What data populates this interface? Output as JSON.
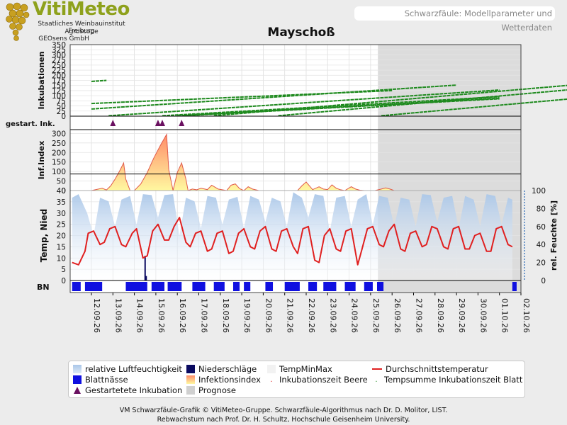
{
  "header": {
    "brand": "VitiMeteo",
    "org1": "Staatliches Weinbauinstitut Freiburg",
    "org2": "Agroscope",
    "org3": "GEOsens GmbH",
    "subtitle": "Schwarzfäule: Modellparameter und Wetterdaten",
    "title": "Mayschoß"
  },
  "colors": {
    "incubation": "#1e8a1e",
    "infection_fill_top": "#ff8c69",
    "infection_fill_bottom": "#fff8a0",
    "infection_line": "#e05a4a",
    "humidity": "#a9c6e8",
    "temperature": "#e02020",
    "precipitation": "#0a0a60",
    "leaf_wetness": "#1010e0",
    "started_marker": "#6a1060",
    "forecast": "#c0c0c0"
  },
  "chart_data": [
    {
      "type": "line",
      "panel": "incubation",
      "ylabel": "Inkubationen",
      "ylim": [
        0,
        350
      ],
      "yticks": [
        0,
        25,
        50,
        75,
        100,
        125,
        150,
        175,
        200,
        225,
        250,
        275,
        300,
        325,
        350
      ],
      "series": [
        {
          "x": [
            0.0,
            0.7
          ],
          "y": [
            170,
            175
          ]
        },
        {
          "x": [
            0.0,
            14.0
          ],
          "y": [
            62,
            125
          ]
        },
        {
          "x": [
            0.0,
            17.0
          ],
          "y": [
            35,
            152
          ]
        },
        {
          "x": [
            0.8,
            19.0
          ],
          "y": [
            2,
            128
          ]
        },
        {
          "x": [
            3.3,
            19.0
          ],
          "y": [
            2,
            95
          ]
        },
        {
          "x": [
            4.0,
            19.0
          ],
          "y": [
            2,
            88
          ]
        },
        {
          "x": [
            4.3,
            19.0
          ],
          "y": [
            2,
            85
          ]
        },
        {
          "x": [
            5.7,
            25.0
          ],
          "y": [
            2,
            176
          ]
        },
        {
          "x": [
            8.7,
            25.0
          ],
          "y": [
            2,
            155
          ]
        },
        {
          "x": [
            13.5,
            25.0
          ],
          "y": [
            2,
            110
          ]
        }
      ]
    },
    {
      "type": "scatter",
      "panel": "started_incubations",
      "ylabel": "gestart. Ink.",
      "x": [
        1.0,
        3.1,
        3.3,
        4.2
      ]
    },
    {
      "type": "area",
      "panel": "infection_index",
      "ylabel": "Inf.Index",
      "ylim": [
        0,
        320
      ],
      "yticks": [
        0,
        50,
        100,
        150,
        200,
        250,
        300
      ],
      "threshold": 87,
      "x": [
        0,
        0.5,
        0.7,
        0.9,
        1.1,
        1.3,
        1.5,
        1.6,
        1.8,
        2.0,
        2.3,
        2.6,
        2.9,
        3.2,
        3.5,
        3.6,
        3.8,
        4.0,
        4.2,
        4.4,
        4.5,
        4.7,
        4.9,
        5.1,
        5.4,
        5.6,
        5.9,
        6.3,
        6.5,
        6.7,
        6.9,
        7.1,
        7.3,
        7.5,
        7.8,
        8.0,
        8.3,
        8.6,
        8.9,
        9.2,
        9.6,
        9.8,
        10.0,
        10.3,
        10.6,
        10.8,
        11.0,
        11.2,
        11.4,
        11.6,
        11.8,
        12.1,
        12.3,
        12.5,
        12.7,
        12.9,
        13.2,
        13.5,
        13.7,
        13.9,
        14.1
      ],
      "y": [
        0,
        12,
        3,
        25,
        60,
        100,
        145,
        60,
        0,
        0,
        35,
        95,
        170,
        235,
        295,
        110,
        0,
        95,
        145,
        60,
        0,
        8,
        4,
        12,
        5,
        28,
        8,
        0,
        28,
        35,
        10,
        0,
        20,
        8,
        0,
        0,
        0,
        0,
        0,
        0,
        0,
        25,
        45,
        5,
        20,
        8,
        5,
        30,
        12,
        4,
        0,
        20,
        8,
        2,
        0,
        0,
        0,
        8,
        14,
        8,
        0
      ]
    },
    {
      "type": "line",
      "panel": "weather",
      "ylabel": "Temp, Nied",
      "y2label": "rel. Feuchte [%]",
      "ylim": [
        0,
        40
      ],
      "yticks": [
        0,
        5,
        10,
        15,
        20,
        25,
        30,
        35,
        40
      ],
      "y2lim": [
        0,
        100
      ],
      "y2ticks": [
        0,
        20,
        40,
        60,
        80,
        100
      ],
      "temperature": {
        "x": [
          0,
          0.3,
          0.6,
          0.75,
          1.0,
          1.3,
          1.5,
          1.75,
          2.0,
          2.3,
          2.5,
          2.8,
          3.0,
          3.3,
          3.5,
          3.75,
          4.0,
          4.3,
          4.5,
          4.75,
          5.0,
          5.3,
          5.5,
          5.75,
          6.0,
          6.3,
          6.5,
          6.75,
          7.0,
          7.3,
          7.5,
          7.75,
          8.0,
          8.3,
          8.5,
          8.75,
          9.0,
          9.3,
          9.5,
          9.75,
          10.0,
          10.3,
          10.5,
          10.75,
          11.0,
          11.3,
          11.5,
          11.75,
          12.0,
          12.3,
          12.5,
          12.75,
          13.0,
          13.3,
          13.5,
          13.75,
          14.0,
          14.3,
          14.5,
          14.75,
          15.0,
          15.3,
          15.5,
          15.75,
          16.0,
          16.3,
          16.5,
          16.75,
          17.0,
          17.3,
          17.5,
          17.75,
          18.0,
          18.3,
          18.5,
          18.75,
          19.0,
          19.3,
          19.5,
          19.75,
          20.0,
          20.3,
          20.5
        ],
        "y": [
          8,
          7,
          13,
          21,
          22,
          16,
          17,
          23,
          24,
          16,
          15,
          21,
          23,
          10,
          11,
          22,
          25,
          18,
          18,
          24,
          28,
          17,
          15,
          21,
          22,
          13,
          14,
          21,
          22,
          12,
          13,
          21,
          23,
          15,
          14,
          22,
          24,
          14,
          13,
          22,
          23,
          15,
          12,
          23,
          24,
          9,
          8,
          20,
          23,
          14,
          13,
          22,
          23,
          7,
          14,
          23,
          24,
          16,
          15,
          22,
          25,
          14,
          13,
          21,
          22,
          15,
          16,
          24,
          23,
          15,
          14,
          23,
          24,
          14,
          14,
          20,
          21,
          13,
          13,
          23,
          24,
          16,
          15
        ]
      },
      "humidity": {
        "x": [
          0,
          0.3,
          0.7,
          1.0,
          1.3,
          1.7,
          2.0,
          2.3,
          2.7,
          3.0,
          3.3,
          3.7,
          4.0,
          4.3,
          4.7,
          5.0,
          5.3,
          5.7,
          6.0,
          6.3,
          6.7,
          7.0,
          7.3,
          7.7,
          8.0,
          8.3,
          8.7,
          9.0,
          9.3,
          9.7,
          10.0,
          10.3,
          10.7,
          11.0,
          11.3,
          11.7,
          12.0,
          12.3,
          12.7,
          13.0,
          13.3,
          13.7,
          14.0,
          14.3,
          14.7,
          15.0,
          15.3,
          15.7,
          16.0,
          16.3,
          16.7,
          17.0,
          17.3,
          17.7,
          18.0,
          18.3,
          18.7,
          19.0,
          19.3,
          19.7,
          20.0,
          20.3,
          20.5
        ],
        "y": [
          92,
          96,
          75,
          50,
          92,
          88,
          60,
          90,
          94,
          62,
          96,
          95,
          70,
          95,
          96,
          50,
          92,
          88,
          58,
          94,
          92,
          62,
          90,
          93,
          58,
          94,
          90,
          65,
          92,
          88,
          60,
          98,
          92,
          70,
          96,
          94,
          55,
          92,
          94,
          60,
          90,
          96,
          62,
          94,
          92,
          60,
          92,
          90,
          60,
          96,
          95,
          65,
          92,
          94,
          58,
          94,
          90,
          60,
          96,
          94,
          62,
          92,
          90
        ]
      },
      "precipitation": {
        "x": [
          2.5,
          2.55
        ],
        "y": [
          11,
          2
        ]
      }
    },
    {
      "type": "bar",
      "panel": "leaf_wetness",
      "ylabel": "BN",
      "intervals": [
        [
          0,
          0.4
        ],
        [
          0.6,
          1.4
        ],
        [
          2.5,
          3.5
        ],
        [
          3.7,
          4.3
        ],
        [
          4.45,
          5.1
        ],
        [
          5.6,
          6.2
        ],
        [
          6.6,
          7.1
        ],
        [
          7.5,
          7.8
        ],
        [
          8.0,
          8.3
        ],
        [
          9.0,
          9.35
        ],
        [
          9.9,
          10.6
        ],
        [
          11.0,
          11.4
        ],
        [
          11.7,
          12.3
        ],
        [
          12.7,
          13.2
        ],
        [
          13.6,
          14.0
        ],
        [
          14.2,
          14.5
        ],
        [
          20.5,
          20.7
        ]
      ]
    }
  ],
  "x_axis": {
    "ticks": [
      "12.09.26",
      "13.09.26",
      "14.09.26",
      "15.09.26",
      "16.09.26",
      "17.09.26",
      "18.09.26",
      "19.09.26",
      "20.09.26",
      "21.09.26",
      "22.09.26",
      "23.09.26",
      "24.09.26",
      "25.09.26",
      "26.09.26",
      "27.09.26",
      "28.09.26",
      "29.09.26",
      "30.09.26",
      "01.10.26",
      "02.10.26"
    ],
    "forecast_start_index": 14
  },
  "legend": {
    "items": [
      {
        "label": "relative Luftfeuchtigkeit",
        "symbol": "humidity"
      },
      {
        "label": "Niederschläge",
        "symbol": "precipitation"
      },
      {
        "label": "TempMinMax",
        "symbol": "tempminmax"
      },
      {
        "label": "Durchschnittstemperatur",
        "symbol": "temperature"
      },
      {
        "label": "Blattnässe",
        "symbol": "leafwetness"
      },
      {
        "label": "Infektionsindex",
        "symbol": "infection"
      },
      {
        "label": "Inkubationszeit Beere",
        "symbol": "dot-red"
      },
      {
        "label": "Tempsumme Inkubationszeit Blatt",
        "symbol": "dot-green"
      },
      {
        "label": "Gestartetete Inkubation",
        "symbol": "triangle"
      },
      {
        "label": "Prognose",
        "symbol": "forecast"
      }
    ]
  },
  "footer": {
    "line1": "VM Schwarzfäule-Grafik © VitiMeteo-Gruppe. Schwarzfäule-Algorithmus nach Dr. D. Molitor, LIST.",
    "line2": "Rebwachstum nach Prof. Dr. H. Schultz, Hochschule Geisenheim University."
  }
}
